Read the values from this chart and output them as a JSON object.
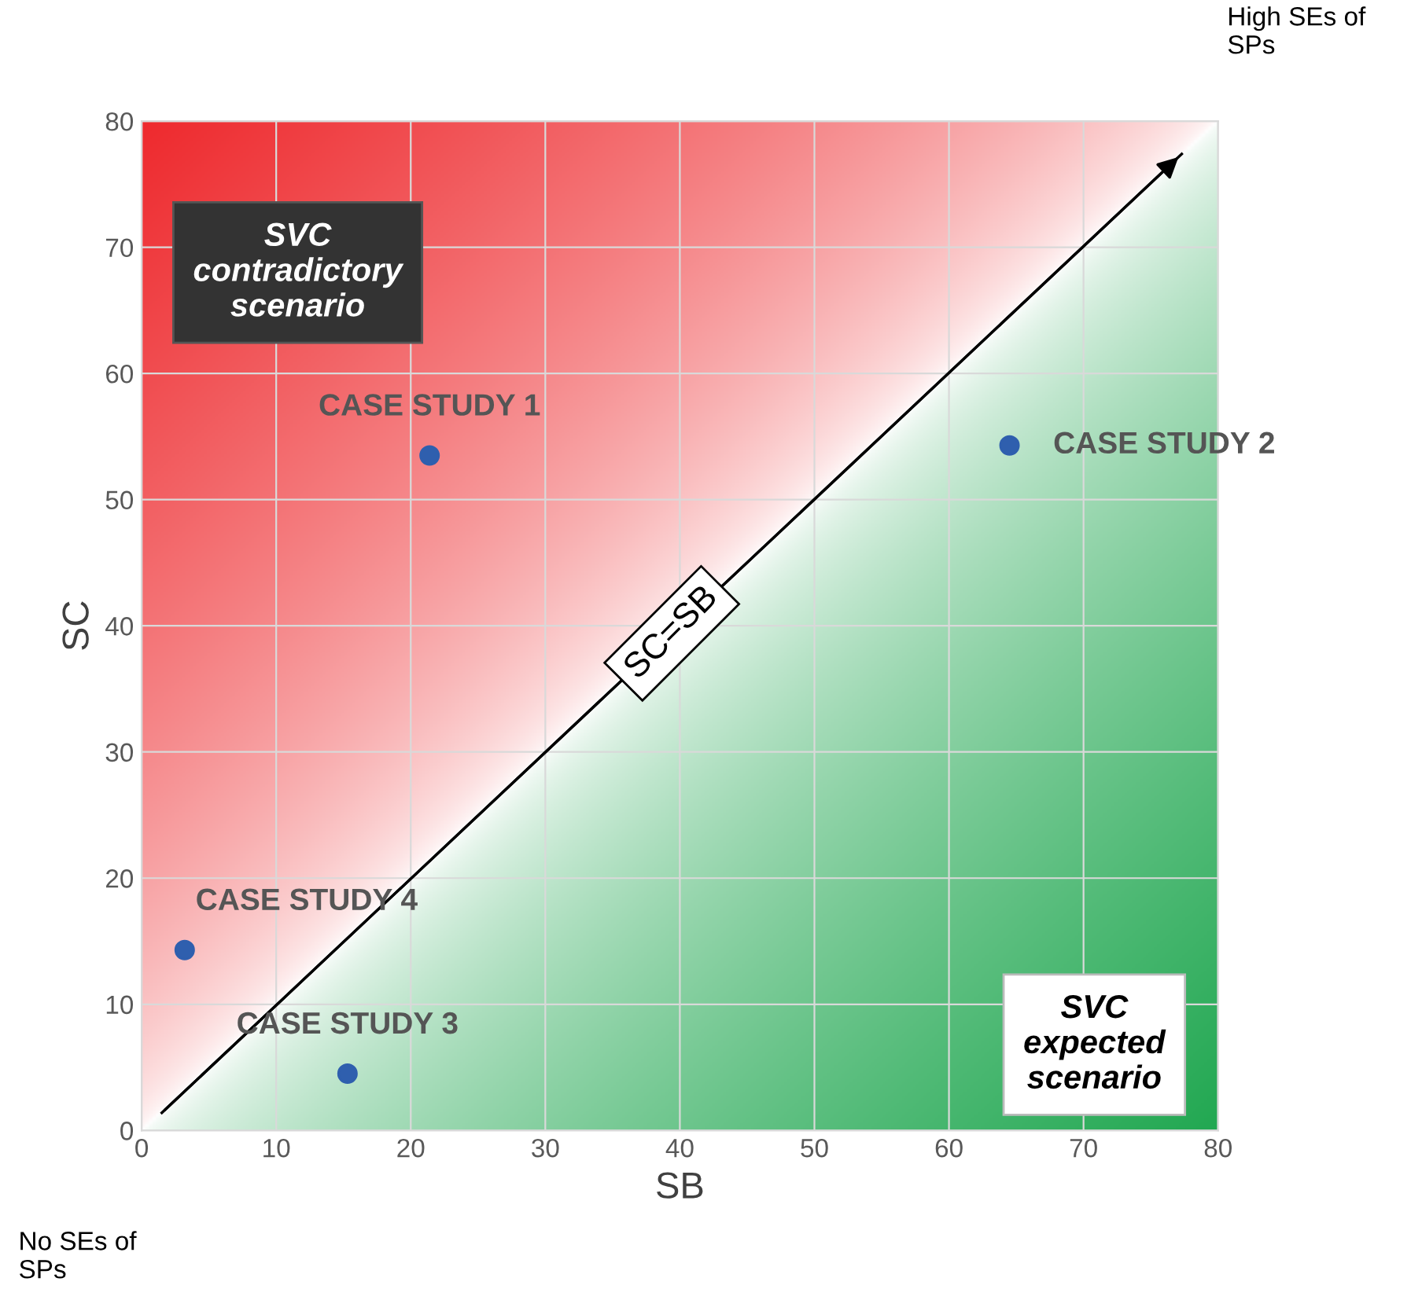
{
  "chart_data": {
    "type": "scatter",
    "xlabel": "SB",
    "ylabel": "SC",
    "x": [
      21.4,
      64.5,
      15.3,
      3.2
    ],
    "series": [
      {
        "color": "#2f5fae",
        "values": [
          53.5,
          54.3,
          4.5,
          14.3
        ],
        "marker": "circle"
      },
      {
        "type": "line",
        "name": "SC=SB",
        "color": "#000000",
        "x": [
          1.5,
          77.3
        ],
        "values": [
          1.4,
          77.4
        ],
        "line_style": "solid"
      }
    ],
    "xlim": [
      0,
      80
    ],
    "ylim": [
      0,
      80
    ],
    "xticks": [
      0,
      10,
      20,
      30,
      40,
      50,
      60,
      70,
      80
    ],
    "yticks": [
      0,
      10,
      20,
      30,
      40,
      50,
      60,
      70,
      80
    ],
    "grid": true,
    "annotations": [
      {
        "text": "CASE STUDY 1",
        "x": 21.4,
        "y": 53.5
      },
      {
        "text": "CASE STUDY 2",
        "x": 64.5,
        "y": 54.3
      },
      {
        "text": "CASE STUDY 3",
        "x": 15.3,
        "y": 4.5
      },
      {
        "text": "CASE STUDY 4",
        "x": 3.2,
        "y": 14.3
      },
      "SVC\ncontradictory\nscenario",
      "SVC\nexpected\nscenario",
      "High SEs of\nSPs",
      "No SEs of\nSPs"
    ]
  }
}
